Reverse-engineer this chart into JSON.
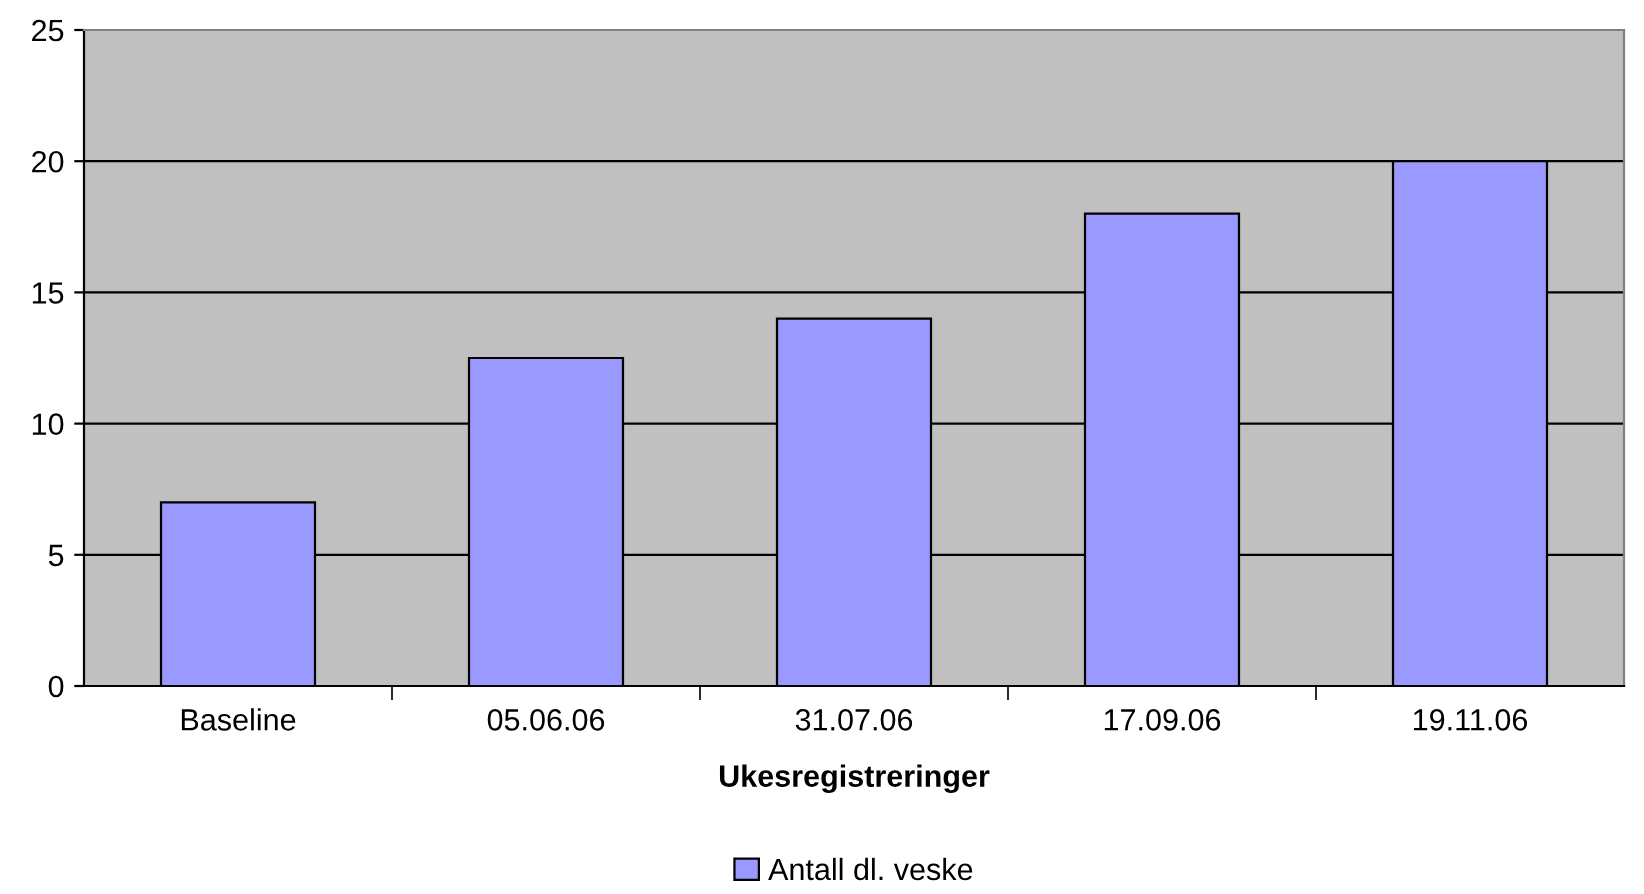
{
  "chart_data": {
    "type": "bar",
    "xlabel": "Ukesregistreringer",
    "categories": [
      "Baseline",
      "05.06.06",
      "31.07.06",
      "17.09.06",
      "19.11.06"
    ],
    "series": [
      {
        "name": "Antall dl. veske",
        "color": "#9999ff",
        "values": [
          7,
          12.5,
          14,
          18,
          20
        ]
      }
    ],
    "ylim": [
      0,
      25
    ],
    "yticks": [
      0,
      5,
      10,
      15,
      20,
      25
    ],
    "grid": "y",
    "legend": "bottom"
  }
}
